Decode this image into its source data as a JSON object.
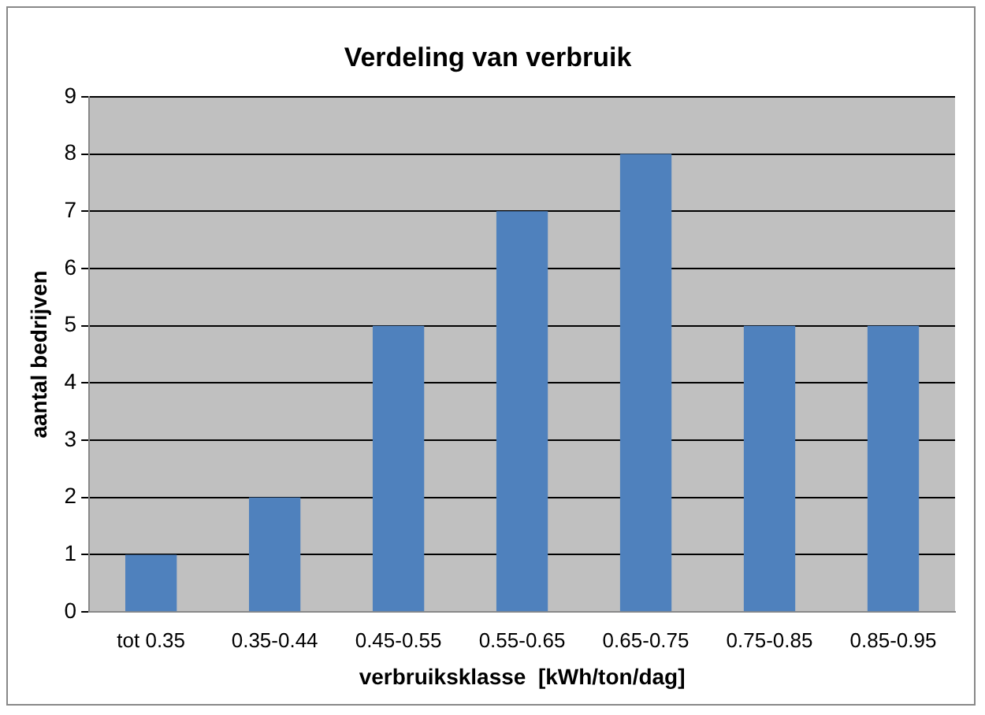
{
  "chart_data": {
    "type": "bar",
    "title": "Verdeling van verbruik",
    "xlabel": "verbruiksklasse  [kWh/ton/dag]",
    "ylabel": "aantal bedrijven",
    "categories": [
      "tot 0.35",
      "0.35-0.44",
      "0.45-0.55",
      "0.55-0.65",
      "0.65-0.75",
      "0.75-0.85",
      "0.85-0.95"
    ],
    "values": [
      1,
      2,
      5,
      7,
      8,
      5,
      5
    ],
    "color": "#4f81bd",
    "ylim": [
      0,
      9
    ],
    "yticks": [
      0,
      1,
      2,
      3,
      4,
      5,
      6,
      7,
      8,
      9
    ],
    "grid": "y",
    "legend": false
  }
}
